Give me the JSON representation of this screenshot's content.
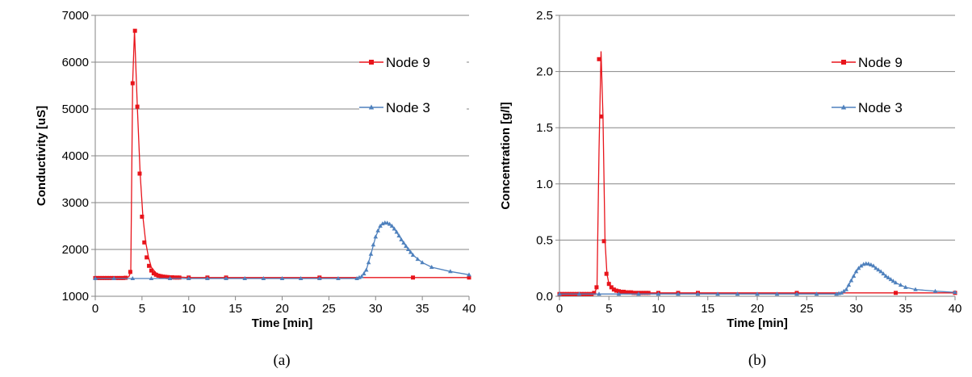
{
  "chart_data": [
    {
      "type": "line",
      "caption": "(a)",
      "xlabel": "Time [min]",
      "ylabel": "Conductivity [uS]",
      "xlim": [
        0,
        40
      ],
      "ylim": [
        1000,
        7000
      ],
      "xticks": [
        0,
        5,
        10,
        15,
        20,
        25,
        30,
        35,
        40
      ],
      "yticks": [
        1000,
        2000,
        3000,
        4000,
        5000,
        6000,
        7000
      ],
      "grid": "horizontal",
      "legend_position": "top-right",
      "series": [
        {
          "name": "Node 9",
          "color": "#e8141b",
          "marker": "square",
          "line_x": [
            0,
            3.2,
            3.6,
            3.8,
            4.0,
            4.2,
            4.5,
            4.8,
            5.1,
            5.4,
            5.7,
            6.0,
            6.5,
            7.0,
            8.0,
            9.0,
            10,
            40
          ],
          "line_y": [
            1380,
            1385,
            1420,
            1520,
            5550,
            6680,
            5050,
            3620,
            2700,
            2150,
            1830,
            1620,
            1500,
            1450,
            1420,
            1410,
            1400,
            1400
          ],
          "points": [
            [
              0,
              1390
            ],
            [
              0.25,
              1390
            ],
            [
              0.5,
              1390
            ],
            [
              0.75,
              1390
            ],
            [
              1.0,
              1390
            ],
            [
              1.25,
              1390
            ],
            [
              1.5,
              1390
            ],
            [
              1.75,
              1390
            ],
            [
              2.0,
              1390
            ],
            [
              2.25,
              1390
            ],
            [
              2.5,
              1390
            ],
            [
              2.75,
              1390
            ],
            [
              3.0,
              1390
            ],
            [
              3.25,
              1395
            ],
            [
              3.75,
              1520
            ],
            [
              4.0,
              5550
            ],
            [
              4.25,
              6670
            ],
            [
              4.5,
              5050
            ],
            [
              4.75,
              3620
            ],
            [
              5.0,
              2700
            ],
            [
              5.25,
              2150
            ],
            [
              5.5,
              1830
            ],
            [
              5.75,
              1650
            ],
            [
              6.0,
              1550
            ],
            [
              6.25,
              1490
            ],
            [
              6.5,
              1460
            ],
            [
              6.75,
              1440
            ],
            [
              7.0,
              1430
            ],
            [
              7.25,
              1420
            ],
            [
              7.5,
              1415
            ],
            [
              7.75,
              1410
            ],
            [
              8.0,
              1405
            ],
            [
              8.25,
              1405
            ],
            [
              8.5,
              1400
            ],
            [
              8.75,
              1400
            ],
            [
              9.0,
              1400
            ],
            [
              10,
              1400
            ],
            [
              12,
              1400
            ],
            [
              14,
              1400
            ],
            [
              24,
              1400
            ],
            [
              34,
              1400
            ],
            [
              40,
              1400
            ]
          ]
        },
        {
          "name": "Node 3",
          "color": "#4f81bd",
          "marker": "triangle",
          "line_x": [
            0,
            28.0,
            28.5,
            29.0,
            29.5,
            30.0,
            30.5,
            31.0,
            31.5,
            32.0,
            32.5,
            33.0,
            33.5,
            34.0,
            35.0,
            36.0,
            38.0,
            40.0
          ],
          "line_y": [
            1380,
            1380,
            1420,
            1560,
            1900,
            2270,
            2500,
            2570,
            2540,
            2440,
            2290,
            2140,
            2000,
            1880,
            1720,
            1620,
            1530,
            1460
          ],
          "points": [
            [
              0,
              1380
            ],
            [
              2,
              1380
            ],
            [
              4,
              1380
            ],
            [
              6,
              1380
            ],
            [
              8,
              1380
            ],
            [
              10,
              1380
            ],
            [
              12,
              1380
            ],
            [
              14,
              1380
            ],
            [
              16,
              1380
            ],
            [
              18,
              1380
            ],
            [
              20,
              1380
            ],
            [
              22,
              1380
            ],
            [
              24,
              1380
            ],
            [
              26,
              1380
            ],
            [
              28,
              1380
            ],
            [
              28.25,
              1400
            ],
            [
              28.5,
              1420
            ],
            [
              28.75,
              1480
            ],
            [
              29.0,
              1560
            ],
            [
              29.25,
              1720
            ],
            [
              29.5,
              1900
            ],
            [
              29.75,
              2100
            ],
            [
              30.0,
              2270
            ],
            [
              30.25,
              2400
            ],
            [
              30.5,
              2500
            ],
            [
              30.75,
              2550
            ],
            [
              31.0,
              2570
            ],
            [
              31.25,
              2565
            ],
            [
              31.5,
              2540
            ],
            [
              31.75,
              2500
            ],
            [
              32.0,
              2440
            ],
            [
              32.25,
              2370
            ],
            [
              32.5,
              2290
            ],
            [
              32.75,
              2210
            ],
            [
              33.0,
              2140
            ],
            [
              33.25,
              2070
            ],
            [
              33.5,
              2000
            ],
            [
              33.75,
              1940
            ],
            [
              34.0,
              1880
            ],
            [
              34.5,
              1790
            ],
            [
              35.0,
              1720
            ],
            [
              36.0,
              1620
            ],
            [
              38.0,
              1530
            ],
            [
              40.0,
              1460
            ]
          ]
        }
      ]
    },
    {
      "type": "line",
      "caption": "(b)",
      "xlabel": "Time [min]",
      "ylabel": "Concentration [g/l]",
      "xlim": [
        0,
        40
      ],
      "ylim": [
        0,
        2.5
      ],
      "xticks": [
        0,
        5,
        10,
        15,
        20,
        25,
        30,
        35,
        40
      ],
      "yticks": [
        0.0,
        0.5,
        1.0,
        1.5,
        2.0,
        2.5
      ],
      "ytick_format": 1,
      "grid": "horizontal",
      "legend_position": "top-right",
      "series": [
        {
          "name": "Node 9",
          "color": "#e8141b",
          "marker": "square",
          "line_x": [
            0,
            3.3,
            3.6,
            3.8,
            4.0,
            4.2,
            4.4,
            4.6,
            4.8,
            5.0,
            5.3,
            5.6,
            6.0,
            7.0,
            9.0,
            10,
            40
          ],
          "line_y": [
            0.02,
            0.02,
            0.04,
            0.08,
            1.3,
            2.18,
            1.6,
            0.5,
            0.2,
            0.11,
            0.07,
            0.05,
            0.04,
            0.035,
            0.03,
            0.03,
            0.03
          ],
          "points": [
            [
              0,
              0.02
            ],
            [
              0.25,
              0.02
            ],
            [
              0.5,
              0.02
            ],
            [
              0.75,
              0.02
            ],
            [
              1.0,
              0.02
            ],
            [
              1.25,
              0.02
            ],
            [
              1.5,
              0.02
            ],
            [
              1.75,
              0.02
            ],
            [
              2.0,
              0.02
            ],
            [
              2.25,
              0.02
            ],
            [
              2.5,
              0.02
            ],
            [
              2.75,
              0.02
            ],
            [
              3.0,
              0.02
            ],
            [
              3.25,
              0.02
            ],
            [
              3.5,
              0.03
            ],
            [
              3.75,
              0.08
            ],
            [
              4.0,
              2.11
            ],
            [
              4.25,
              1.6
            ],
            [
              4.5,
              0.49
            ],
            [
              4.75,
              0.2
            ],
            [
              5.0,
              0.11
            ],
            [
              5.25,
              0.08
            ],
            [
              5.5,
              0.06
            ],
            [
              5.75,
              0.05
            ],
            [
              6.0,
              0.045
            ],
            [
              6.25,
              0.04
            ],
            [
              6.5,
              0.04
            ],
            [
              6.75,
              0.035
            ],
            [
              7.0,
              0.035
            ],
            [
              7.25,
              0.035
            ],
            [
              7.5,
              0.03
            ],
            [
              7.75,
              0.03
            ],
            [
              8.0,
              0.03
            ],
            [
              8.25,
              0.03
            ],
            [
              8.5,
              0.03
            ],
            [
              8.75,
              0.03
            ],
            [
              9.0,
              0.03
            ],
            [
              10,
              0.03
            ],
            [
              12,
              0.03
            ],
            [
              14,
              0.03
            ],
            [
              24,
              0.03
            ],
            [
              34,
              0.03
            ],
            [
              40,
              0.03
            ]
          ]
        },
        {
          "name": "Node 3",
          "color": "#4f81bd",
          "marker": "triangle",
          "line_x": [
            0,
            28.0,
            28.5,
            29.0,
            29.5,
            30.0,
            30.5,
            31.0,
            31.5,
            32.0,
            32.5,
            33.0,
            34.0,
            35.0,
            36.0,
            38.0,
            40.0
          ],
          "line_y": [
            0.02,
            0.02,
            0.03,
            0.06,
            0.14,
            0.22,
            0.27,
            0.29,
            0.28,
            0.25,
            0.22,
            0.18,
            0.12,
            0.08,
            0.06,
            0.045,
            0.035
          ],
          "points": [
            [
              0,
              0.02
            ],
            [
              2,
              0.02
            ],
            [
              4,
              0.02
            ],
            [
              6,
              0.02
            ],
            [
              8,
              0.02
            ],
            [
              10,
              0.02
            ],
            [
              12,
              0.02
            ],
            [
              14,
              0.02
            ],
            [
              16,
              0.02
            ],
            [
              18,
              0.02
            ],
            [
              20,
              0.02
            ],
            [
              22,
              0.02
            ],
            [
              24,
              0.02
            ],
            [
              26,
              0.02
            ],
            [
              28,
              0.02
            ],
            [
              28.25,
              0.025
            ],
            [
              28.5,
              0.03
            ],
            [
              28.75,
              0.045
            ],
            [
              29.0,
              0.06
            ],
            [
              29.25,
              0.1
            ],
            [
              29.5,
              0.14
            ],
            [
              29.75,
              0.18
            ],
            [
              30.0,
              0.22
            ],
            [
              30.25,
              0.25
            ],
            [
              30.5,
              0.27
            ],
            [
              30.75,
              0.285
            ],
            [
              31.0,
              0.29
            ],
            [
              31.25,
              0.288
            ],
            [
              31.5,
              0.28
            ],
            [
              31.75,
              0.27
            ],
            [
              32.0,
              0.25
            ],
            [
              32.25,
              0.235
            ],
            [
              32.5,
              0.22
            ],
            [
              32.75,
              0.2
            ],
            [
              33.0,
              0.18
            ],
            [
              33.25,
              0.165
            ],
            [
              33.5,
              0.15
            ],
            [
              33.75,
              0.135
            ],
            [
              34.0,
              0.12
            ],
            [
              34.5,
              0.1
            ],
            [
              35.0,
              0.08
            ],
            [
              36.0,
              0.06
            ],
            [
              38.0,
              0.045
            ],
            [
              40.0,
              0.035
            ]
          ]
        }
      ]
    }
  ]
}
